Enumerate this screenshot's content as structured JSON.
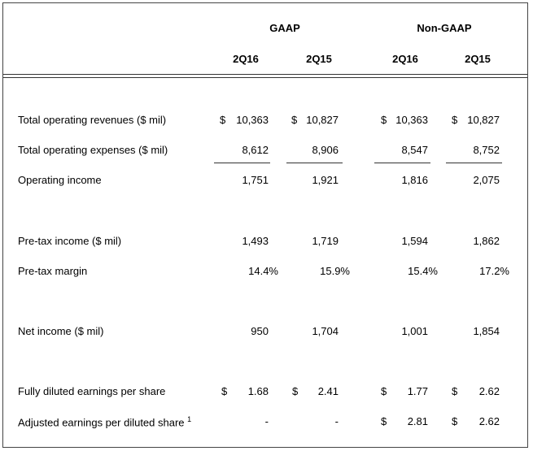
{
  "header": {
    "group_gaap": "GAAP",
    "group_nongaap": "Non-GAAP",
    "columns": [
      "2Q16",
      "2Q15",
      "2Q16",
      "2Q15"
    ]
  },
  "rows": {
    "total_operating_revenues": {
      "label": "Total operating revenues ($ mil)",
      "values": [
        "10,363",
        "10,827",
        "10,363",
        "10,827"
      ],
      "currency": [
        "$",
        "$",
        "$",
        "$"
      ]
    },
    "total_operating_expenses": {
      "label": "Total operating expenses ($ mil)",
      "values": [
        "8,612",
        "8,906",
        "8,547",
        "8,752"
      ]
    },
    "operating_income": {
      "label": "Operating income",
      "values": [
        "1,751",
        "1,921",
        "1,816",
        "2,075"
      ]
    },
    "pretax_income": {
      "label": "Pre-tax income ($ mil)",
      "values": [
        "1,493",
        "1,719",
        "1,594",
        "1,862"
      ]
    },
    "pretax_margin": {
      "label": "Pre-tax margin",
      "values": [
        "14.4%",
        "15.9%",
        "15.4%",
        "17.2%"
      ]
    },
    "net_income": {
      "label": "Net income ($ mil)",
      "values": [
        "950",
        "1,704",
        "1,001",
        "1,854"
      ]
    },
    "fully_diluted_eps": {
      "label": "Fully diluted earnings per share",
      "values": [
        "1.68",
        "2.41",
        "1.77",
        "2.62"
      ],
      "currency": [
        "$",
        "$",
        "$",
        "$"
      ]
    },
    "adjusted_eps": {
      "label": "Adjusted earnings per diluted share",
      "footnote": "1",
      "values": [
        "-",
        "-",
        "2.81",
        "2.62"
      ],
      "currency": [
        "",
        "",
        "$",
        "$"
      ]
    }
  }
}
